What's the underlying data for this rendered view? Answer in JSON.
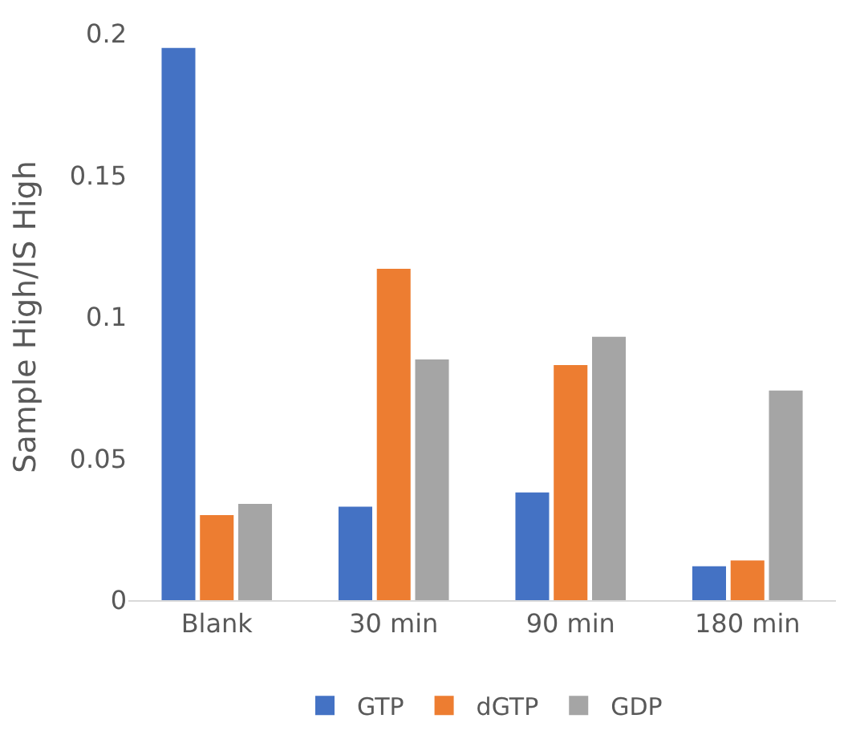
{
  "chart_data": {
    "type": "bar",
    "ylabel": "Sample High/IS High",
    "categories": [
      "Blank",
      "30 min",
      "90 min",
      "180 min"
    ],
    "series": [
      {
        "name": "GTP",
        "color": "#4472c4",
        "values": [
          0.195,
          0.033,
          0.038,
          0.012
        ]
      },
      {
        "name": "dGTP",
        "color": "#ed7d31",
        "values": [
          0.03,
          0.117,
          0.083,
          0.014
        ]
      },
      {
        "name": "GDP",
        "color": "#a5a5a5",
        "values": [
          0.034,
          0.085,
          0.093,
          0.074
        ]
      }
    ],
    "ylim": [
      0,
      0.2
    ],
    "yticks": [
      0,
      0.05,
      0.1,
      0.15,
      0.2
    ],
    "grid": false,
    "legend": "bottom"
  }
}
